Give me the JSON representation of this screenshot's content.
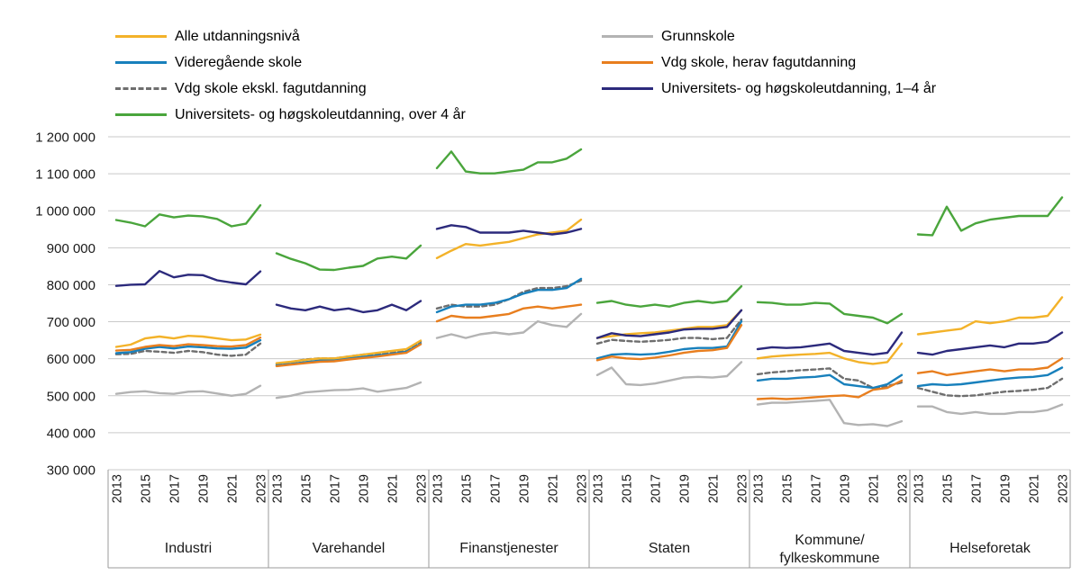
{
  "legend": {
    "columns": [
      {
        "items": [
          {
            "label": "Alle utdanningsnivå",
            "series": "alle",
            "color": "#F3B229",
            "dash": false
          },
          {
            "label": "Videregående skole",
            "series": "vgs",
            "color": "#1880BC",
            "dash": false
          },
          {
            "label": "Vdg skole ekskl. fagutdanning",
            "series": "vgs_ekskl",
            "color": "#6E6E6E",
            "dash": true
          },
          {
            "label": "Universitets- og høgskoleutdanning, over 4 år",
            "series": "uni_over4",
            "color": "#4AA53C",
            "dash": false
          }
        ]
      },
      {
        "items": [
          {
            "label": "Grunnskole",
            "series": "grunnskole",
            "color": "#B3B3B3",
            "dash": false
          },
          {
            "label": "Vdg skole, herav fagutdanning",
            "series": "fag",
            "color": "#E87E1E",
            "dash": false
          },
          {
            "label": "Universitets- og høgskoleutdanning, 1–4 år",
            "series": "uni_1_4",
            "color": "#2C2A7C",
            "dash": false
          }
        ]
      }
    ]
  },
  "chart_data": {
    "type": "line",
    "title": "",
    "unit": "NOK",
    "x": [
      2013,
      2014,
      2015,
      2016,
      2017,
      2018,
      2019,
      2020,
      2021,
      2022,
      2023
    ],
    "x_tick_idx": [
      0,
      2,
      4,
      6,
      8,
      10
    ],
    "x_tick_labels": [
      "2013",
      "2015",
      "2017",
      "2019",
      "2021",
      "2023"
    ],
    "ylim": [
      300000,
      1200000
    ],
    "grid": true,
    "legend_position": "top",
    "draw_order": [
      "grunnskole",
      "vgs_ekskl",
      "vgs",
      "fag",
      "alle",
      "uni_1_4",
      "uni_over4"
    ],
    "y_ticks": [
      {
        "value": 300000,
        "label": "300 000"
      },
      {
        "value": 400000,
        "label": "400 000"
      },
      {
        "value": 500000,
        "label": "500 000"
      },
      {
        "value": 600000,
        "label": "600 000"
      },
      {
        "value": 700000,
        "label": "700 000"
      },
      {
        "value": 800000,
        "label": "800 000"
      },
      {
        "value": 900000,
        "label": "900 000"
      },
      {
        "value": 1000000,
        "label": "1 000 000"
      },
      {
        "value": 1100000,
        "label": "1 100 000"
      },
      {
        "value": 1200000,
        "label": "1 200 000"
      }
    ],
    "panels": [
      {
        "label": "Industri",
        "label_lines": [
          "Industri"
        ],
        "series": {
          "alle": [
            632000,
            638000,
            655000,
            660000,
            655000,
            662000,
            660000,
            655000,
            650000,
            652000,
            665000
          ],
          "vgs": [
            615000,
            618000,
            627000,
            632000,
            628000,
            633000,
            631000,
            628000,
            627000,
            630000,
            650000
          ],
          "vgs_ekskl": [
            612000,
            613000,
            621000,
            619000,
            616000,
            621000,
            618000,
            611000,
            608000,
            611000,
            641000
          ],
          "fag": [
            622000,
            624000,
            632000,
            637000,
            634000,
            639000,
            637000,
            634000,
            633000,
            637000,
            657000
          ],
          "grunnskole": [
            505000,
            510000,
            512000,
            507000,
            505000,
            511000,
            512000,
            506000,
            500000,
            505000,
            527000
          ],
          "uni_1_4": [
            797000,
            800000,
            801000,
            837000,
            820000,
            827000,
            826000,
            812000,
            806000,
            801000,
            836000
          ],
          "uni_over4": [
            975000,
            968000,
            958000,
            990000,
            982000,
            987000,
            985000,
            978000,
            958000,
            965000,
            1015000
          ]
        }
      },
      {
        "label": "Varehandel",
        "label_lines": [
          "Varehandel"
        ],
        "series": {
          "alle": [
            588000,
            592000,
            597000,
            601000,
            601000,
            606000,
            611000,
            616000,
            621000,
            626000,
            649000
          ],
          "vgs": [
            582000,
            586000,
            591000,
            595000,
            596000,
            601000,
            605000,
            609000,
            613000,
            619000,
            641000
          ],
          "vgs_ekskl": [
            586000,
            591000,
            598000,
            601000,
            601000,
            606000,
            611000,
            613000,
            616000,
            621000,
            646000
          ],
          "fag": [
            580000,
            584000,
            588000,
            592000,
            593000,
            598000,
            602000,
            606000,
            611000,
            616000,
            639000
          ],
          "grunnskole": [
            494000,
            500000,
            509000,
            512000,
            515000,
            516000,
            520000,
            511000,
            516000,
            521000,
            536000
          ],
          "uni_1_4": [
            746000,
            736000,
            731000,
            741000,
            731000,
            736000,
            726000,
            731000,
            746000,
            731000,
            756000
          ],
          "uni_over4": [
            885000,
            870000,
            858000,
            841000,
            840000,
            846000,
            851000,
            871000,
            876000,
            871000,
            906000
          ]
        }
      },
      {
        "label": "Finanstjenester",
        "label_lines": [
          "Finanstjenester"
        ],
        "series": {
          "alle": [
            872000,
            892000,
            910000,
            906000,
            911000,
            916000,
            926000,
            936000,
            941000,
            946000,
            976000
          ],
          "vgs": [
            726000,
            741000,
            746000,
            746000,
            751000,
            761000,
            776000,
            786000,
            786000,
            791000,
            816000
          ],
          "vgs_ekskl": [
            736000,
            746000,
            741000,
            741000,
            746000,
            761000,
            781000,
            791000,
            791000,
            796000,
            811000
          ],
          "fag": [
            701000,
            716000,
            711000,
            711000,
            716000,
            721000,
            736000,
            741000,
            736000,
            741000,
            746000
          ],
          "grunnskole": [
            656000,
            666000,
            656000,
            666000,
            671000,
            666000,
            671000,
            701000,
            691000,
            686000,
            721000
          ],
          "uni_1_4": [
            951000,
            961000,
            956000,
            941000,
            941000,
            941000,
            946000,
            941000,
            936000,
            941000,
            951000
          ],
          "uni_over4": [
            1115000,
            1160000,
            1106000,
            1101000,
            1101000,
            1106000,
            1111000,
            1131000,
            1131000,
            1141000,
            1166000
          ]
        }
      },
      {
        "label": "Staten",
        "label_lines": [
          "Staten"
        ],
        "series": {
          "alle": [
            656000,
            661000,
            666000,
            669000,
            671000,
            676000,
            681000,
            686000,
            686000,
            691000,
            731000
          ],
          "vgs": [
            601000,
            611000,
            613000,
            611000,
            613000,
            619000,
            626000,
            629000,
            629000,
            633000,
            701000
          ],
          "vgs_ekskl": [
            641000,
            651000,
            648000,
            646000,
            648000,
            651000,
            656000,
            656000,
            653000,
            656000,
            706000
          ],
          "fag": [
            596000,
            606000,
            601000,
            599000,
            603000,
            609000,
            616000,
            621000,
            623000,
            629000,
            691000
          ],
          "grunnskole": [
            556000,
            576000,
            531000,
            529000,
            533000,
            541000,
            549000,
            551000,
            549000,
            553000,
            591000
          ],
          "uni_1_4": [
            656000,
            669000,
            663000,
            661000,
            666000,
            671000,
            679000,
            681000,
            681000,
            686000,
            731000
          ],
          "uni_over4": [
            751000,
            756000,
            746000,
            741000,
            746000,
            741000,
            751000,
            756000,
            751000,
            756000,
            796000
          ]
        }
      },
      {
        "label": "Kommune/fylkeskommune",
        "label_lines": [
          "Kommune/",
          "fylkeskommune"
        ],
        "series": {
          "alle": [
            601000,
            606000,
            609000,
            611000,
            613000,
            616000,
            601000,
            591000,
            586000,
            591000,
            641000
          ],
          "vgs": [
            541000,
            546000,
            546000,
            549000,
            551000,
            556000,
            531000,
            526000,
            521000,
            531000,
            556000
          ],
          "vgs_ekskl": [
            558000,
            563000,
            566000,
            569000,
            571000,
            574000,
            546000,
            541000,
            521000,
            526000,
            536000
          ],
          "fag": [
            491000,
            493000,
            491000,
            493000,
            496000,
            499000,
            501000,
            496000,
            516000,
            521000,
            541000
          ],
          "grunnskole": [
            476000,
            481000,
            481000,
            484000,
            486000,
            489000,
            426000,
            421000,
            423000,
            418000,
            431000
          ],
          "uni_1_4": [
            626000,
            631000,
            629000,
            631000,
            636000,
            641000,
            621000,
            616000,
            611000,
            616000,
            671000
          ],
          "uni_over4": [
            753000,
            751000,
            746000,
            746000,
            751000,
            749000,
            721000,
            716000,
            711000,
            696000,
            721000
          ]
        }
      },
      {
        "label": "Helseforetak",
        "label_lines": [
          "Helseforetak"
        ],
        "series": {
          "alle": [
            666000,
            671000,
            676000,
            681000,
            701000,
            696000,
            701000,
            711000,
            711000,
            716000,
            766000
          ],
          "vgs": [
            526000,
            531000,
            529000,
            531000,
            536000,
            541000,
            546000,
            549000,
            551000,
            556000,
            576000
          ],
          "vgs_ekskl": [
            521000,
            511000,
            501000,
            499000,
            501000,
            506000,
            511000,
            513000,
            516000,
            521000,
            546000
          ],
          "fag": [
            561000,
            566000,
            556000,
            561000,
            566000,
            571000,
            566000,
            571000,
            571000,
            576000,
            601000
          ],
          "grunnskole": [
            471000,
            471000,
            456000,
            451000,
            456000,
            451000,
            451000,
            456000,
            456000,
            461000,
            476000
          ],
          "uni_1_4": [
            616000,
            611000,
            621000,
            626000,
            631000,
            636000,
            631000,
            641000,
            641000,
            646000,
            671000
          ],
          "uni_over4": [
            936000,
            934000,
            1011000,
            946000,
            966000,
            976000,
            981000,
            986000,
            986000,
            986000,
            1036000
          ]
        }
      }
    ]
  }
}
